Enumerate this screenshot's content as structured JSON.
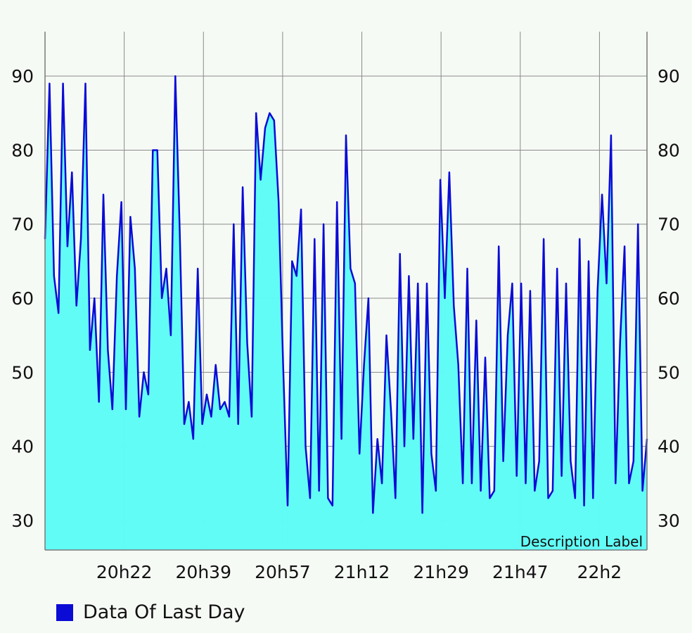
{
  "chart_data": {
    "type": "area",
    "description_label": "Description Label",
    "ylim": [
      26,
      96
    ],
    "y_ticks": [
      30,
      40,
      50,
      60,
      70,
      80,
      90
    ],
    "x_tick_labels": [
      "20h22",
      "20h39",
      "20h57",
      "21h12",
      "21h29",
      "21h47",
      "22h2"
    ],
    "grid": true,
    "legend_position": "bottom-left",
    "series": [
      {
        "name": "Data Of Last Day",
        "line_color": "#0b0bd6",
        "fill_color": "#5ffcf6",
        "values": [
          68,
          89,
          63,
          58,
          89,
          67,
          77,
          59,
          68,
          89,
          53,
          60,
          46,
          74,
          53,
          45,
          63,
          73,
          45,
          71,
          64,
          44,
          50,
          47,
          80,
          80,
          60,
          64,
          55,
          90,
          69,
          43,
          46,
          41,
          64,
          43,
          47,
          44,
          51,
          45,
          46,
          44,
          70,
          43,
          75,
          54,
          44,
          85,
          76,
          83,
          85,
          84,
          73,
          51,
          32,
          65,
          63,
          72,
          40,
          33,
          68,
          34,
          70,
          33,
          32,
          73,
          41,
          82,
          64,
          62,
          39,
          51,
          60,
          31,
          41,
          35,
          55,
          45,
          33,
          66,
          40,
          63,
          41,
          62,
          31,
          62,
          39,
          34,
          76,
          60,
          77,
          59,
          51,
          35,
          64,
          35,
          57,
          34,
          52,
          33,
          34,
          67,
          38,
          55,
          62,
          36,
          62,
          35,
          61,
          34,
          38,
          68,
          33,
          34,
          64,
          36,
          62,
          38,
          33,
          68,
          32,
          65,
          33,
          61,
          74,
          62,
          82,
          35,
          54,
          67,
          35,
          38,
          70,
          34,
          41
        ]
      }
    ]
  }
}
